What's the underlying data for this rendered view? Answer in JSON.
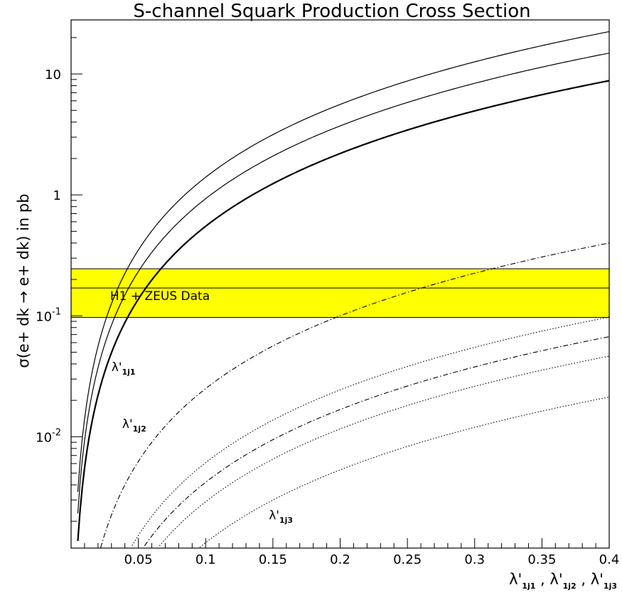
{
  "chart_data": {
    "type": "line",
    "title": "S-channel Squark Production Cross Section",
    "xlabel": "λ'1j1 , λ'1j2 , λ'1j3",
    "xlabel_parts": [
      {
        "main": "λ'",
        "sub": "1j1"
      },
      {
        "sep": " , "
      },
      {
        "main": "λ'",
        "sub": "1j2"
      },
      {
        "sep": " , "
      },
      {
        "main": "λ'",
        "sub": "1j3"
      }
    ],
    "ylabel": "σ(e+ dk → e+ dk) in pb",
    "xlim": [
      0.0,
      0.4
    ],
    "ylim": [
      0.0012,
      28
    ],
    "yscale": "log",
    "x_ticks": [
      {
        "value": 0.05,
        "label": "0.05"
      },
      {
        "value": 0.1,
        "label": "0.1"
      },
      {
        "value": 0.15,
        "label": "0.15"
      },
      {
        "value": 0.2,
        "label": "0.2"
      },
      {
        "value": 0.25,
        "label": "0.25"
      },
      {
        "value": 0.3,
        "label": "0.3"
      },
      {
        "value": 0.35,
        "label": "0.35"
      },
      {
        "value": 0.4,
        "label": "0.4"
      }
    ],
    "y_ticks": [
      {
        "value": 0.01,
        "label": "10",
        "exp": "-2"
      },
      {
        "value": 0.1,
        "label": "10",
        "exp": "-1"
      },
      {
        "value": 1,
        "label": "1",
        "exp": ""
      },
      {
        "value": 10,
        "label": "10",
        "exp": ""
      }
    ],
    "band": {
      "label": "H1 + ZEUS Data",
      "low": 0.097,
      "central": 0.17,
      "high": 0.245,
      "color": "#ffff00"
    },
    "series": [
      {
        "group": "λ'1j1",
        "style": "solid",
        "width": 1.2,
        "coef": 140,
        "x_start": 0.005
      },
      {
        "group": "λ'1j1",
        "style": "solid",
        "width": 1.2,
        "coef": 93,
        "x_start": 0.005
      },
      {
        "group": "λ'1j1",
        "style": "solid",
        "width": 2.2,
        "coef": 55,
        "x_start": 0.005
      },
      {
        "group": "λ'1j2",
        "style": "dashdot",
        "width": 1.1,
        "coef": 2.5,
        "x_start": 0.022
      },
      {
        "group": "λ'1j2",
        "style": "dashdot",
        "width": 1.1,
        "coef": 0.42,
        "x_start": 0.038
      },
      {
        "group": "λ'1j3",
        "style": "dotted",
        "width": 1.1,
        "coef": 0.61,
        "x_start": 0.03
      },
      {
        "group": "λ'1j3",
        "style": "dotted",
        "width": 1.1,
        "coef": 0.29,
        "x_start": 0.045
      },
      {
        "group": "λ'1j3",
        "style": "dotted",
        "width": 1.1,
        "coef": 0.133,
        "x_start": 0.065
      }
    ],
    "annotations": [
      {
        "main": "λ'",
        "sub": "1j1",
        "x": 0.03,
        "y": 0.035
      },
      {
        "main": "λ'",
        "sub": "1j2",
        "x": 0.038,
        "y": 0.0118
      },
      {
        "main": "λ'",
        "sub": "1j3",
        "x": 0.147,
        "y": 0.00208
      }
    ]
  }
}
